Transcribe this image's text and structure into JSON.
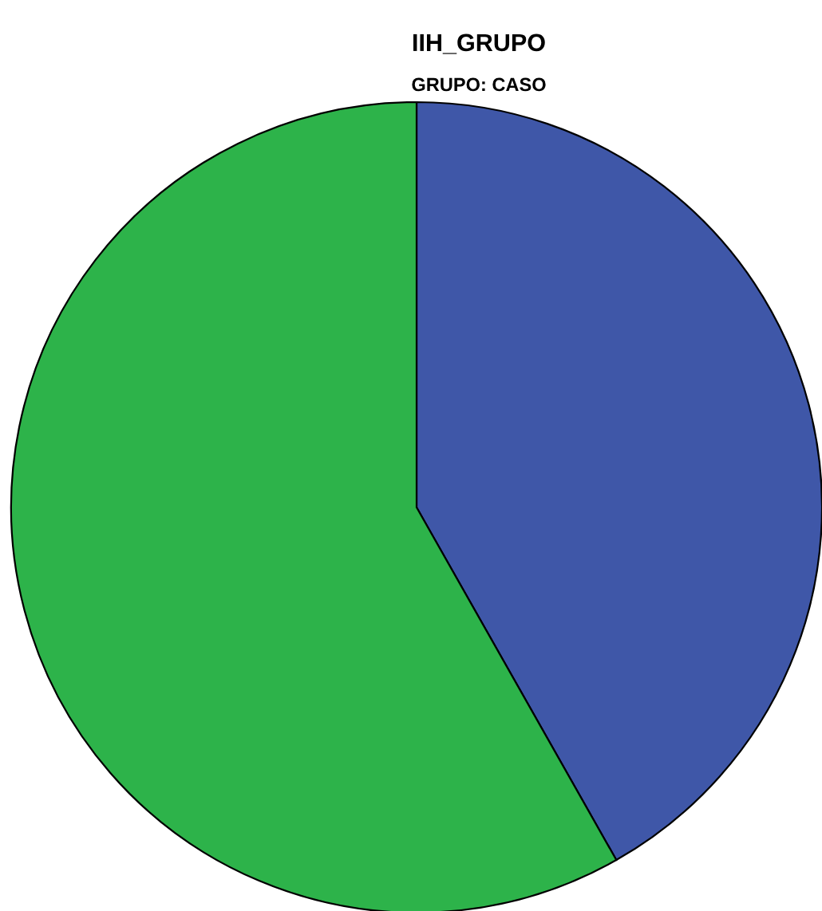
{
  "chart_data": {
    "type": "pie",
    "title": "IIH_GRUPO",
    "subtitle": "GRUPO: CASO",
    "categories": [
      null,
      null
    ],
    "values": [
      41.8,
      58.2
    ],
    "colors": [
      "#3f57a8",
      "#2db34a"
    ]
  }
}
